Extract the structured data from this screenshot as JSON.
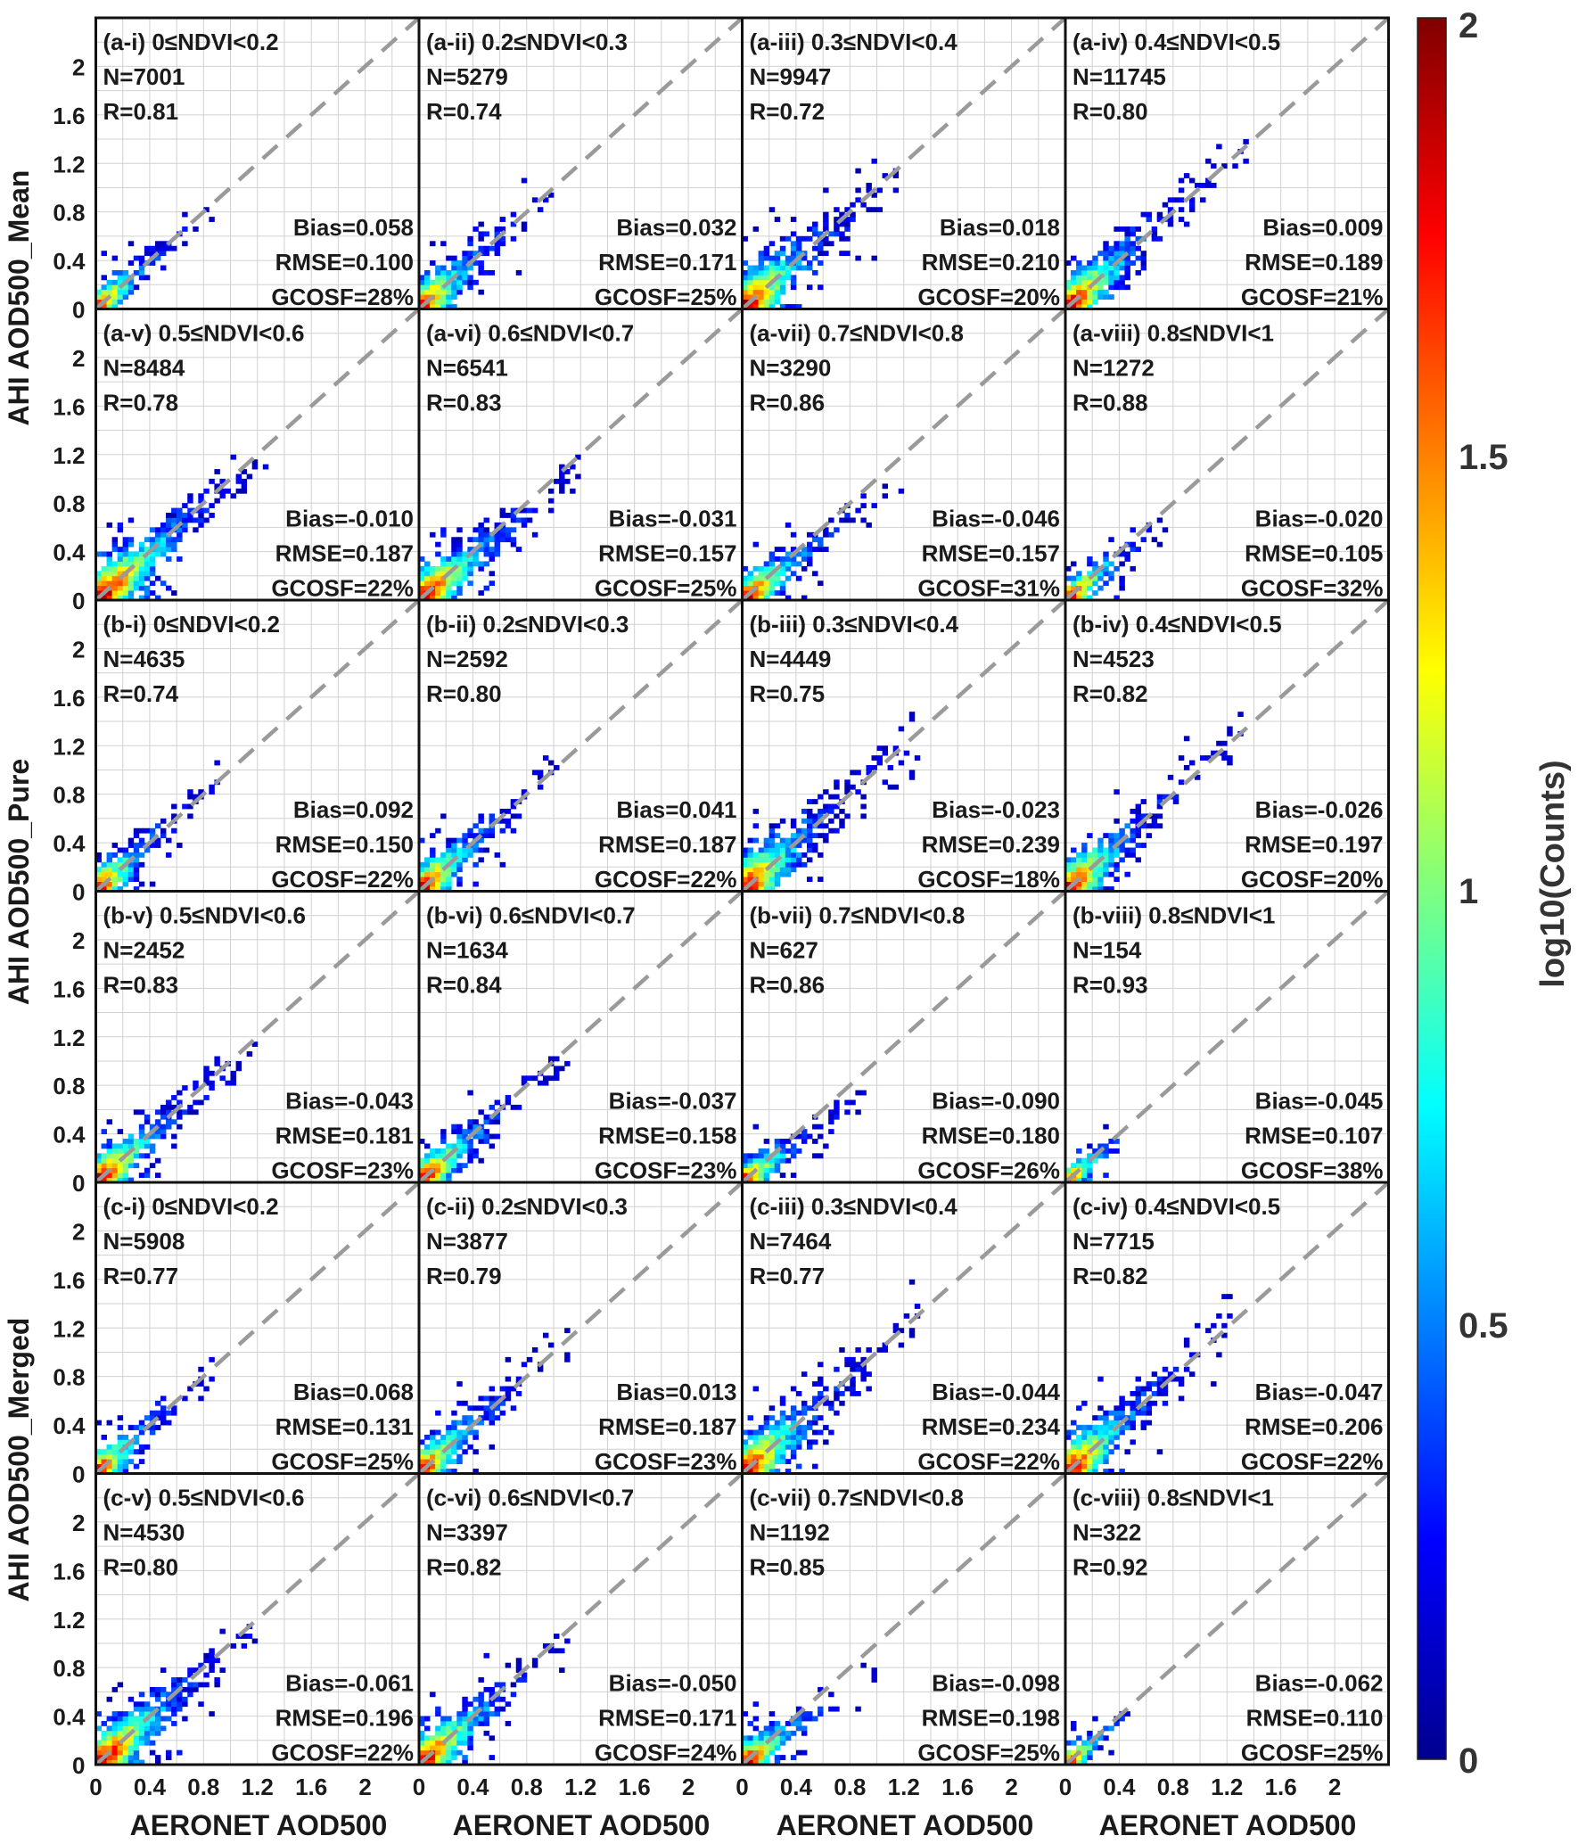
{
  "figure": {
    "ylabels": [
      "AHI AOD500_Mean",
      "AHI AOD500_Pure",
      "AHI AOD500_Merged"
    ],
    "xlabel": "AERONET AOD500",
    "colorbar": {
      "label": "log10(Counts)",
      "ticks": [
        "2",
        "1.5",
        "1",
        "0.5",
        "0"
      ],
      "colormap": "jet",
      "range": [
        0,
        2
      ]
    }
  },
  "chart_data": [
    {
      "type": "heatmap",
      "panel": "(a-i)",
      "range": "0≤NDVI<0.2",
      "title": "(a-i) 0≤NDVI<0.2",
      "N": "N=7001",
      "R": "R=0.81",
      "bias": "Bias=0.058",
      "rmse": "RMSE=0.100",
      "gcosf": "GCOSF=28%",
      "xlabel": "",
      "ylabel": "AHI AOD500_Mean",
      "xlim": [
        0,
        2.4
      ],
      "ylim": [
        0,
        2.4
      ],
      "xticks": [],
      "yticks": [
        "0",
        "0.4",
        "0.8",
        "1.2",
        "1.6",
        "2"
      ],
      "slope": 1.0,
      "spread": 0.08,
      "maxAOD": 0.9,
      "core": 0.05,
      "seed": 11
    },
    {
      "type": "heatmap",
      "panel": "(a-ii)",
      "range": "0.2≤NDVI<0.3",
      "title": "(a-ii) 0.2≤NDVI<0.3",
      "N": "N=5279",
      "R": "R=0.74",
      "bias": "Bias=0.032",
      "rmse": "RMSE=0.171",
      "gcosf": "GCOSF=25%",
      "xlabel": "",
      "ylabel": "",
      "xlim": [
        0,
        2.4
      ],
      "ylim": [
        0,
        2.4
      ],
      "xticks": [],
      "yticks": [],
      "slope": 1.0,
      "spread": 0.12,
      "maxAOD": 1.0,
      "core": 0.08,
      "seed": 12
    },
    {
      "type": "heatmap",
      "panel": "(a-iii)",
      "range": "0.3≤NDVI<0.4",
      "title": "(a-iii) 0.3≤NDVI<0.4",
      "N": "N=9947",
      "R": "R=0.72",
      "bias": "Bias=0.018",
      "rmse": "RMSE=0.210",
      "gcosf": "GCOSF=20%",
      "xlabel": "",
      "ylabel": "",
      "xlim": [
        0,
        2.4
      ],
      "ylim": [
        0,
        2.4
      ],
      "xticks": [],
      "yticks": [],
      "slope": 1.0,
      "spread": 0.15,
      "maxAOD": 1.2,
      "core": 0.12,
      "seed": 13
    },
    {
      "type": "heatmap",
      "panel": "(a-iv)",
      "range": "0.4≤NDVI<0.5",
      "title": "(a-iv) 0.4≤NDVI<0.5",
      "N": "N=11745",
      "R": "R=0.80",
      "bias": "Bias=0.009",
      "rmse": "RMSE=0.189",
      "gcosf": "GCOSF=21%",
      "xlabel": "",
      "ylabel": "",
      "xlim": [
        0,
        2.4
      ],
      "ylim": [
        0,
        2.4
      ],
      "xticks": [],
      "yticks": [],
      "slope": 1.0,
      "spread": 0.13,
      "maxAOD": 1.4,
      "core": 0.12,
      "seed": 14
    },
    {
      "type": "heatmap",
      "panel": "(a-v)",
      "range": "0.5≤NDVI<0.6",
      "title": "(a-v) 0.5≤NDVI<0.6",
      "N": "N=8484",
      "R": "R=0.78",
      "bias": "Bias=-0.010",
      "rmse": "RMSE=0.187",
      "gcosf": "GCOSF=22%",
      "xlabel": "",
      "ylabel": "",
      "xlim": [
        0,
        2.4
      ],
      "ylim": [
        0,
        2.4
      ],
      "xticks": [],
      "yticks": [
        "0",
        "0.4",
        "0.8",
        "1.2",
        "1.6",
        "2"
      ],
      "slope": 0.95,
      "spread": 0.12,
      "maxAOD": 1.3,
      "core": 0.2,
      "seed": 15
    },
    {
      "type": "heatmap",
      "panel": "(a-vi)",
      "range": "0.6≤NDVI<0.7",
      "title": "(a-vi) 0.6≤NDVI<0.7",
      "N": "N=6541",
      "R": "R=0.83",
      "bias": "Bias=-0.031",
      "rmse": "RMSE=0.157",
      "gcosf": "GCOSF=25%",
      "xlabel": "",
      "ylabel": "",
      "xlim": [
        0,
        2.4
      ],
      "ylim": [
        0,
        2.4
      ],
      "xticks": [],
      "yticks": [],
      "slope": 0.9,
      "spread": 0.11,
      "maxAOD": 1.2,
      "core": 0.15,
      "seed": 16
    },
    {
      "type": "heatmap",
      "panel": "(a-vii)",
      "range": "0.7≤NDVI<0.8",
      "title": "(a-vii) 0.7≤NDVI<0.8",
      "N": "N=3290",
      "R": "R=0.86",
      "bias": "Bias=-0.046",
      "rmse": "RMSE=0.157",
      "gcosf": "GCOSF=31%",
      "xlabel": "",
      "ylabel": "",
      "xlim": [
        0,
        2.4
      ],
      "ylim": [
        0,
        2.4
      ],
      "xticks": [],
      "yticks": [],
      "slope": 0.85,
      "spread": 0.09,
      "maxAOD": 1.2,
      "core": 0.1,
      "seed": 17
    },
    {
      "type": "heatmap",
      "panel": "(a-viii)",
      "range": "0.8≤NDVI<1",
      "title": "(a-viii) 0.8≤NDVI<1",
      "N": "N=1272",
      "R": "R=0.88",
      "bias": "Bias=-0.020",
      "rmse": "RMSE=0.105",
      "gcosf": "GCOSF=32%",
      "xlabel": "",
      "ylabel": "",
      "xlim": [
        0,
        2.4
      ],
      "ylim": [
        0,
        2.4
      ],
      "xticks": [],
      "yticks": [],
      "slope": 0.9,
      "spread": 0.07,
      "maxAOD": 0.8,
      "core": 0.08,
      "seed": 18
    },
    {
      "type": "heatmap",
      "panel": "(b-i)",
      "range": "0≤NDVI<0.2",
      "title": "(b-i) 0≤NDVI<0.2",
      "N": "N=4635",
      "R": "R=0.74",
      "bias": "Bias=0.092",
      "rmse": "RMSE=0.150",
      "gcosf": "GCOSF=22%",
      "xlabel": "",
      "ylabel": "AHI AOD500_Pure",
      "xlim": [
        0,
        2.4
      ],
      "ylim": [
        0,
        2.4
      ],
      "xticks": [],
      "yticks": [
        "0",
        "0.4",
        "0.8",
        "1.2",
        "1.6",
        "2"
      ],
      "slope": 1.0,
      "spread": 0.1,
      "maxAOD": 0.9,
      "core": 0.06,
      "seed": 21
    },
    {
      "type": "heatmap",
      "panel": "(b-ii)",
      "range": "0.2≤NDVI<0.3",
      "title": "(b-ii) 0.2≤NDVI<0.3",
      "N": "N=2592",
      "R": "R=0.80",
      "bias": "Bias=0.041",
      "rmse": "RMSE=0.187",
      "gcosf": "GCOSF=22%",
      "xlabel": "",
      "ylabel": "",
      "xlim": [
        0,
        2.4
      ],
      "ylim": [
        0,
        2.4
      ],
      "xticks": [],
      "yticks": [],
      "slope": 1.0,
      "spread": 0.12,
      "maxAOD": 1.1,
      "core": 0.08,
      "seed": 22
    },
    {
      "type": "heatmap",
      "panel": "(b-iii)",
      "range": "0.3≤NDVI<0.4",
      "title": "(b-iii) 0.3≤NDVI<0.4",
      "N": "N=4449",
      "R": "R=0.75",
      "bias": "Bias=-0.023",
      "rmse": "RMSE=0.239",
      "gcosf": "GCOSF=18%",
      "xlabel": "",
      "ylabel": "",
      "xlim": [
        0,
        2.4
      ],
      "ylim": [
        0,
        2.4
      ],
      "xticks": [],
      "yticks": [],
      "slope": 1.0,
      "spread": 0.16,
      "maxAOD": 1.3,
      "core": 0.1,
      "seed": 23
    },
    {
      "type": "heatmap",
      "panel": "(b-iv)",
      "range": "0.4≤NDVI<0.5",
      "title": "(b-iv) 0.4≤NDVI<0.5",
      "N": "N=4523",
      "R": "R=0.82",
      "bias": "Bias=-0.026",
      "rmse": "RMSE=0.197",
      "gcosf": "GCOSF=20%",
      "xlabel": "",
      "ylabel": "",
      "xlim": [
        0,
        2.4
      ],
      "ylim": [
        0,
        2.4
      ],
      "xticks": [],
      "yticks": [],
      "slope": 1.0,
      "spread": 0.13,
      "maxAOD": 1.3,
      "core": 0.1,
      "seed": 24
    },
    {
      "type": "heatmap",
      "panel": "(b-v)",
      "range": "0.5≤NDVI<0.6",
      "title": "(b-v) 0.5≤NDVI<0.6",
      "N": "N=2452",
      "R": "R=0.83",
      "bias": "Bias=-0.043",
      "rmse": "RMSE=0.181",
      "gcosf": "GCOSF=23%",
      "xlabel": "",
      "ylabel": "",
      "xlim": [
        0,
        2.4
      ],
      "ylim": [
        0,
        2.4
      ],
      "xticks": [],
      "yticks": [
        "0",
        "0.4",
        "0.8",
        "1.2",
        "1.6",
        "2"
      ],
      "slope": 0.95,
      "spread": 0.11,
      "maxAOD": 1.2,
      "core": 0.12,
      "seed": 25
    },
    {
      "type": "heatmap",
      "panel": "(b-vi)",
      "range": "0.6≤NDVI<0.7",
      "title": "(b-vi) 0.6≤NDVI<0.7",
      "N": "N=1634",
      "R": "R=0.84",
      "bias": "Bias=-0.037",
      "rmse": "RMSE=0.158",
      "gcosf": "GCOSF=23%",
      "xlabel": "",
      "ylabel": "",
      "xlim": [
        0,
        2.4
      ],
      "ylim": [
        0,
        2.4
      ],
      "xticks": [],
      "yticks": [],
      "slope": 0.95,
      "spread": 0.1,
      "maxAOD": 1.1,
      "core": 0.1,
      "seed": 26
    },
    {
      "type": "heatmap",
      "panel": "(b-vii)",
      "range": "0.7≤NDVI<0.8",
      "title": "(b-vii) 0.7≤NDVI<0.8",
      "N": "N=627",
      "R": "R=0.86",
      "bias": "Bias=-0.090",
      "rmse": "RMSE=0.180",
      "gcosf": "GCOSF=26%",
      "xlabel": "",
      "ylabel": "",
      "xlim": [
        0,
        2.4
      ],
      "ylim": [
        0,
        2.4
      ],
      "xticks": [],
      "yticks": [],
      "slope": 0.8,
      "spread": 0.08,
      "maxAOD": 0.9,
      "core": 0.05,
      "seed": 27
    },
    {
      "type": "heatmap",
      "panel": "(b-viii)",
      "range": "0.8≤NDVI<1",
      "title": "(b-viii) 0.8≤NDVI<1",
      "N": "N=154",
      "R": "R=0.93",
      "bias": "Bias=-0.045",
      "rmse": "RMSE=0.107",
      "gcosf": "GCOSF=38%",
      "xlabel": "",
      "ylabel": "",
      "xlim": [
        0,
        2.4
      ],
      "ylim": [
        0,
        2.4
      ],
      "xticks": [],
      "yticks": [],
      "slope": 0.9,
      "spread": 0.05,
      "maxAOD": 0.4,
      "core": 0.05,
      "seed": 28
    },
    {
      "type": "heatmap",
      "panel": "(c-i)",
      "range": "0≤NDVI<0.2",
      "title": "(c-i) 0≤NDVI<0.2",
      "N": "N=5908",
      "R": "R=0.77",
      "bias": "Bias=0.068",
      "rmse": "RMSE=0.131",
      "gcosf": "GCOSF=25%",
      "xlabel": "",
      "ylabel": "AHI AOD500_Merged",
      "xlim": [
        0,
        2.4
      ],
      "ylim": [
        0,
        2.4
      ],
      "xticks": [],
      "yticks": [
        "0",
        "0.4",
        "0.8",
        "1.2",
        "1.6",
        "2"
      ],
      "slope": 1.0,
      "spread": 0.1,
      "maxAOD": 0.9,
      "core": 0.05,
      "seed": 31
    },
    {
      "type": "heatmap",
      "panel": "(c-ii)",
      "range": "0.2≤NDVI<0.3",
      "title": "(c-ii) 0.2≤NDVI<0.3",
      "N": "N=3877",
      "R": "R=0.79",
      "bias": "Bias=0.013",
      "rmse": "RMSE=0.187",
      "gcosf": "GCOSF=23%",
      "xlabel": "",
      "ylabel": "",
      "xlim": [
        0,
        2.4
      ],
      "ylim": [
        0,
        2.4
      ],
      "xticks": [],
      "yticks": [],
      "slope": 1.0,
      "spread": 0.12,
      "maxAOD": 1.1,
      "core": 0.08,
      "seed": 32
    },
    {
      "type": "heatmap",
      "panel": "(c-iii)",
      "range": "0.3≤NDVI<0.4",
      "title": "(c-iii) 0.3≤NDVI<0.4",
      "N": "N=7464",
      "R": "R=0.77",
      "bias": "Bias=-0.044",
      "rmse": "RMSE=0.234",
      "gcosf": "GCOSF=22%",
      "xlabel": "",
      "ylabel": "",
      "xlim": [
        0,
        2.4
      ],
      "ylim": [
        0,
        2.4
      ],
      "xticks": [],
      "yticks": [],
      "slope": 1.0,
      "spread": 0.15,
      "maxAOD": 1.3,
      "core": 0.12,
      "seed": 33
    },
    {
      "type": "heatmap",
      "panel": "(c-iv)",
      "range": "0.4≤NDVI<0.5",
      "title": "(c-iv) 0.4≤NDVI<0.5",
      "N": "N=7715",
      "R": "R=0.82",
      "bias": "Bias=-0.047",
      "rmse": "RMSE=0.206",
      "gcosf": "GCOSF=22%",
      "xlabel": "",
      "ylabel": "",
      "xlim": [
        0,
        2.4
      ],
      "ylim": [
        0,
        2.4
      ],
      "xticks": [],
      "yticks": [],
      "slope": 1.0,
      "spread": 0.13,
      "maxAOD": 1.3,
      "core": 0.12,
      "seed": 34
    },
    {
      "type": "heatmap",
      "panel": "(c-v)",
      "range": "0.5≤NDVI<0.6",
      "title": "(c-v) 0.5≤NDVI<0.6",
      "N": "N=4530",
      "R": "R=0.80",
      "bias": "Bias=-0.061",
      "rmse": "RMSE=0.196",
      "gcosf": "GCOSF=22%",
      "xlabel": "AERONET AOD500",
      "ylabel": "",
      "xlim": [
        0,
        2.4
      ],
      "ylim": [
        0,
        2.4
      ],
      "xticks": [
        "0",
        "0.4",
        "0.8",
        "1.2",
        "1.6",
        "2"
      ],
      "yticks": [
        "0",
        "0.4",
        "0.8",
        "1.2",
        "1.6",
        "2"
      ],
      "slope": 0.95,
      "spread": 0.12,
      "maxAOD": 1.2,
      "core": 0.18,
      "seed": 35
    },
    {
      "type": "heatmap",
      "panel": "(c-vi)",
      "range": "0.6≤NDVI<0.7",
      "title": "(c-vi) 0.6≤NDVI<0.7",
      "N": "N=3397",
      "R": "R=0.82",
      "bias": "Bias=-0.050",
      "rmse": "RMSE=0.171",
      "gcosf": "GCOSF=24%",
      "xlabel": "AERONET AOD500",
      "ylabel": "",
      "xlim": [
        0,
        2.4
      ],
      "ylim": [
        0,
        2.4
      ],
      "xticks": [
        "0",
        "0.4",
        "0.8",
        "1.2",
        "1.6",
        "2"
      ],
      "yticks": [],
      "slope": 0.95,
      "spread": 0.11,
      "maxAOD": 1.2,
      "core": 0.15,
      "seed": 36
    },
    {
      "type": "heatmap",
      "panel": "(c-vii)",
      "range": "0.7≤NDVI<0.8",
      "title": "(c-vii) 0.7≤NDVI<0.8",
      "N": "N=1192",
      "R": "R=0.85",
      "bias": "Bias=-0.098",
      "rmse": "RMSE=0.198",
      "gcosf": "GCOSF=25%",
      "xlabel": "AERONET AOD500",
      "ylabel": "",
      "xlim": [
        0,
        2.4
      ],
      "ylim": [
        0,
        2.4
      ],
      "xticks": [
        "0",
        "0.4",
        "0.8",
        "1.2",
        "1.6",
        "2"
      ],
      "yticks": [],
      "slope": 0.8,
      "spread": 0.09,
      "maxAOD": 1.0,
      "core": 0.08,
      "seed": 37
    },
    {
      "type": "heatmap",
      "panel": "(c-viii)",
      "range": "0.8≤NDVI<1",
      "title": "(c-viii) 0.8≤NDVI<1",
      "N": "N=322",
      "R": "R=0.92",
      "bias": "Bias=-0.062",
      "rmse": "RMSE=0.110",
      "gcosf": "GCOSF=25%",
      "xlabel": "AERONET AOD500",
      "ylabel": "",
      "xlim": [
        0,
        2.4
      ],
      "ylim": [
        0,
        2.4
      ],
      "xticks": [
        "0",
        "0.4",
        "0.8",
        "1.2",
        "1.6",
        "2"
      ],
      "yticks": [],
      "slope": 0.9,
      "spread": 0.05,
      "maxAOD": 0.45,
      "core": 0.05,
      "seed": 38
    }
  ]
}
